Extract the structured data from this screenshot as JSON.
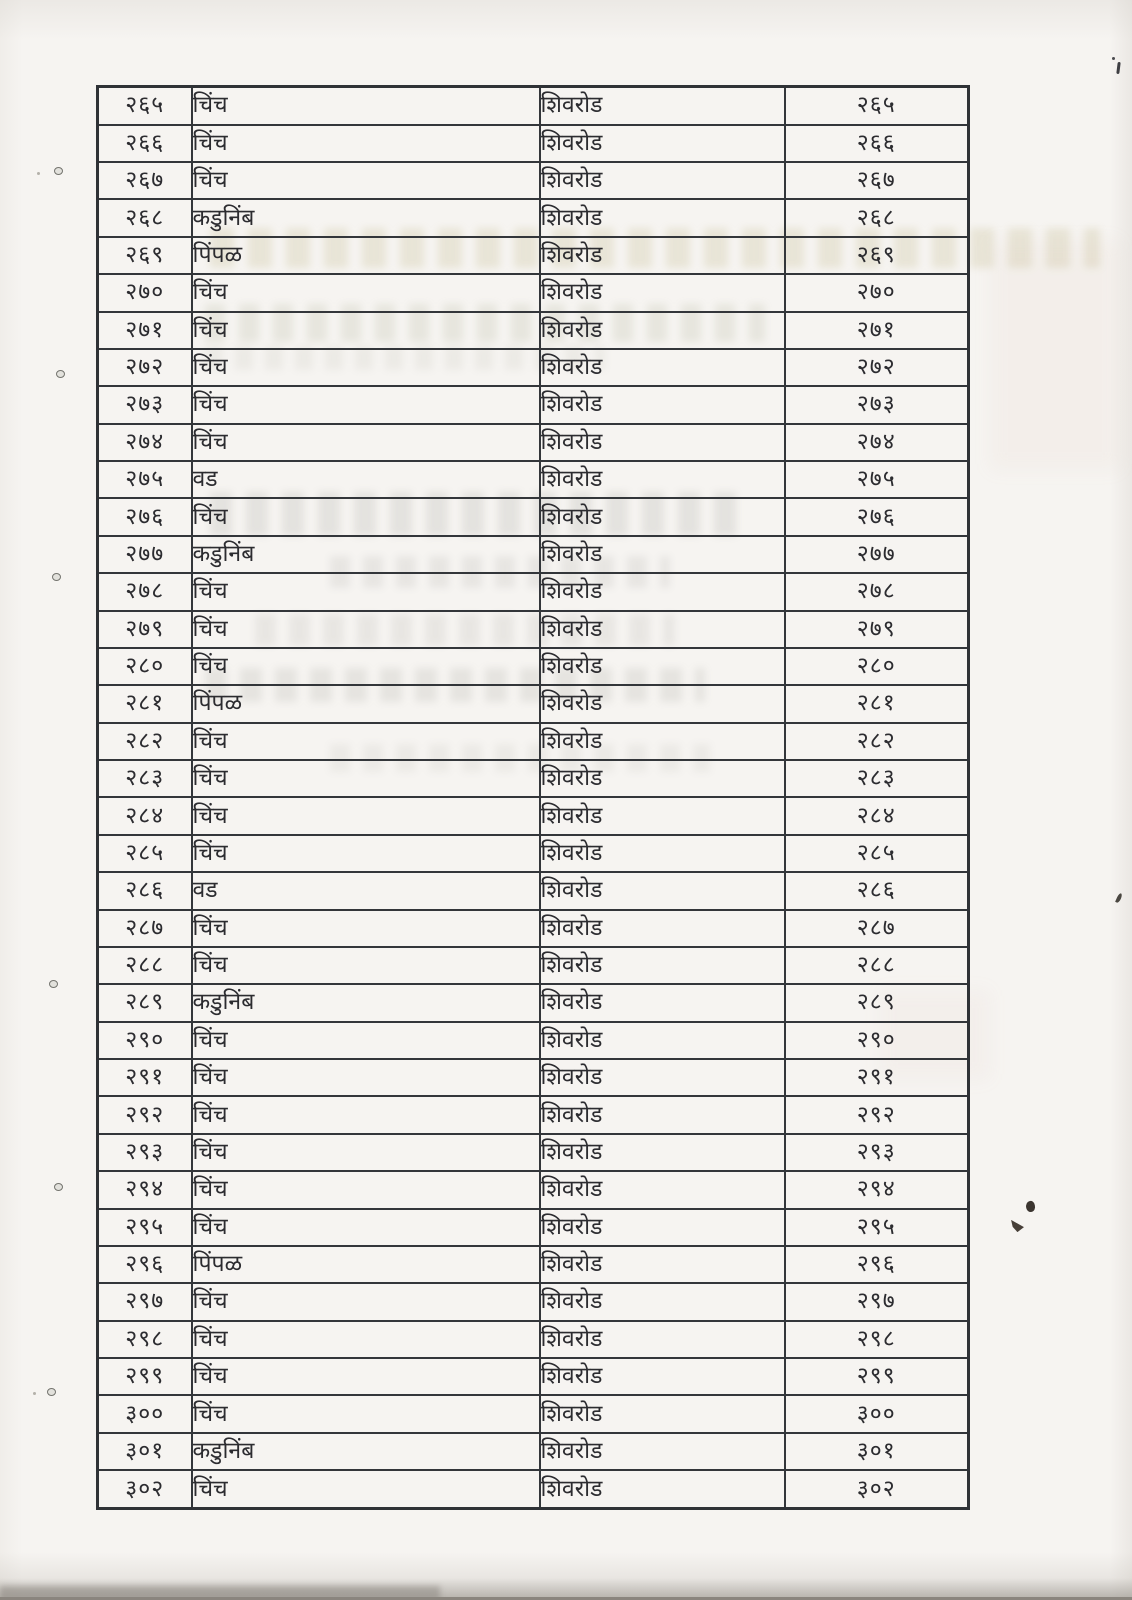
{
  "colors": {
    "paper": "#f6f4f1",
    "ink": "#2c2c30",
    "grid_line": "#33363a"
  },
  "table": {
    "rows": [
      {
        "serial": "२६५",
        "tree": "चिंच",
        "location": "शिवरोड",
        "serial_repeat": "२६५"
      },
      {
        "serial": "२६६",
        "tree": "चिंच",
        "location": "शिवरोड",
        "serial_repeat": "२६६"
      },
      {
        "serial": "२६७",
        "tree": "चिंच",
        "location": "शिवरोड",
        "serial_repeat": "२६७"
      },
      {
        "serial": "२६८",
        "tree": "कडुनिंब",
        "location": "शिवरोड",
        "serial_repeat": "२६८"
      },
      {
        "serial": "२६९",
        "tree": "पिंपळ",
        "location": "शिवरोड",
        "serial_repeat": "२६९"
      },
      {
        "serial": "२७०",
        "tree": "चिंच",
        "location": "शिवरोड",
        "serial_repeat": "२७०"
      },
      {
        "serial": "२७१",
        "tree": "चिंच",
        "location": "शिवरोड",
        "serial_repeat": "२७१"
      },
      {
        "serial": "२७२",
        "tree": "चिंच",
        "location": "शिवरोड",
        "serial_repeat": "२७२"
      },
      {
        "serial": "२७३",
        "tree": "चिंच",
        "location": "शिवरोड",
        "serial_repeat": "२७३"
      },
      {
        "serial": "२७४",
        "tree": "चिंच",
        "location": "शिवरोड",
        "serial_repeat": "२७४"
      },
      {
        "serial": "२७५",
        "tree": "वड",
        "location": "शिवरोड",
        "serial_repeat": "२७५"
      },
      {
        "serial": "२७६",
        "tree": "चिंच",
        "location": "शिवरोड",
        "serial_repeat": "२७६"
      },
      {
        "serial": "२७७",
        "tree": "कडुनिंब",
        "location": "शिवरोड",
        "serial_repeat": "२७७"
      },
      {
        "serial": "२७८",
        "tree": "चिंच",
        "location": "शिवरोड",
        "serial_repeat": "२७८"
      },
      {
        "serial": "२७९",
        "tree": "चिंच",
        "location": "शिवरोड",
        "serial_repeat": "२७९"
      },
      {
        "serial": "२८०",
        "tree": "चिंच",
        "location": "शिवरोड",
        "serial_repeat": "२८०"
      },
      {
        "serial": "२८१",
        "tree": "पिंपळ",
        "location": "शिवरोड",
        "serial_repeat": "२८१"
      },
      {
        "serial": "२८२",
        "tree": "चिंच",
        "location": "शिवरोड",
        "serial_repeat": "२८२"
      },
      {
        "serial": "२८३",
        "tree": "चिंच",
        "location": "शिवरोड",
        "serial_repeat": "२८३"
      },
      {
        "serial": "२८४",
        "tree": "चिंच",
        "location": "शिवरोड",
        "serial_repeat": "२८४"
      },
      {
        "serial": "२८५",
        "tree": "चिंच",
        "location": "शिवरोड",
        "serial_repeat": "२८५"
      },
      {
        "serial": "२८६",
        "tree": "वड",
        "location": "शिवरोड",
        "serial_repeat": "२८६"
      },
      {
        "serial": "२८७",
        "tree": "चिंच",
        "location": "शिवरोड",
        "serial_repeat": "२८७"
      },
      {
        "serial": "२८८",
        "tree": "चिंच",
        "location": "शिवरोड",
        "serial_repeat": "२८८"
      },
      {
        "serial": "२८९",
        "tree": "कडुनिंब",
        "location": "शिवरोड",
        "serial_repeat": "२८९"
      },
      {
        "serial": "२९०",
        "tree": "चिंच",
        "location": "शिवरोड",
        "serial_repeat": "२९०"
      },
      {
        "serial": "२९१",
        "tree": "चिंच",
        "location": "शिवरोड",
        "serial_repeat": "२९१"
      },
      {
        "serial": "२९२",
        "tree": "चिंच",
        "location": "शिवरोड",
        "serial_repeat": "२९२"
      },
      {
        "serial": "२९३",
        "tree": "चिंच",
        "location": "शिवरोड",
        "serial_repeat": "२९३"
      },
      {
        "serial": "२९४",
        "tree": "चिंच",
        "location": "शिवरोड",
        "serial_repeat": "२९४"
      },
      {
        "serial": "२९५",
        "tree": "चिंच",
        "location": "शिवरोड",
        "serial_repeat": "२९५"
      },
      {
        "serial": "२९६",
        "tree": "पिंपळ",
        "location": "शिवरोड",
        "serial_repeat": "२९६"
      },
      {
        "serial": "२९७",
        "tree": "चिंच",
        "location": "शिवरोड",
        "serial_repeat": "२९७"
      },
      {
        "serial": "२९८",
        "tree": "चिंच",
        "location": "शिवरोड",
        "serial_repeat": "२९८"
      },
      {
        "serial": "२९९",
        "tree": "चिंच",
        "location": "शिवरोड",
        "serial_repeat": "२९९"
      },
      {
        "serial": "३००",
        "tree": "चिंच",
        "location": "शिवरोड",
        "serial_repeat": "३००"
      },
      {
        "serial": "३०१",
        "tree": "कडुनिंब",
        "location": "शिवरोड",
        "serial_repeat": "३०१"
      },
      {
        "serial": "३०२",
        "tree": "चिंच",
        "location": "शिवरोड",
        "serial_repeat": "३०२"
      }
    ]
  }
}
